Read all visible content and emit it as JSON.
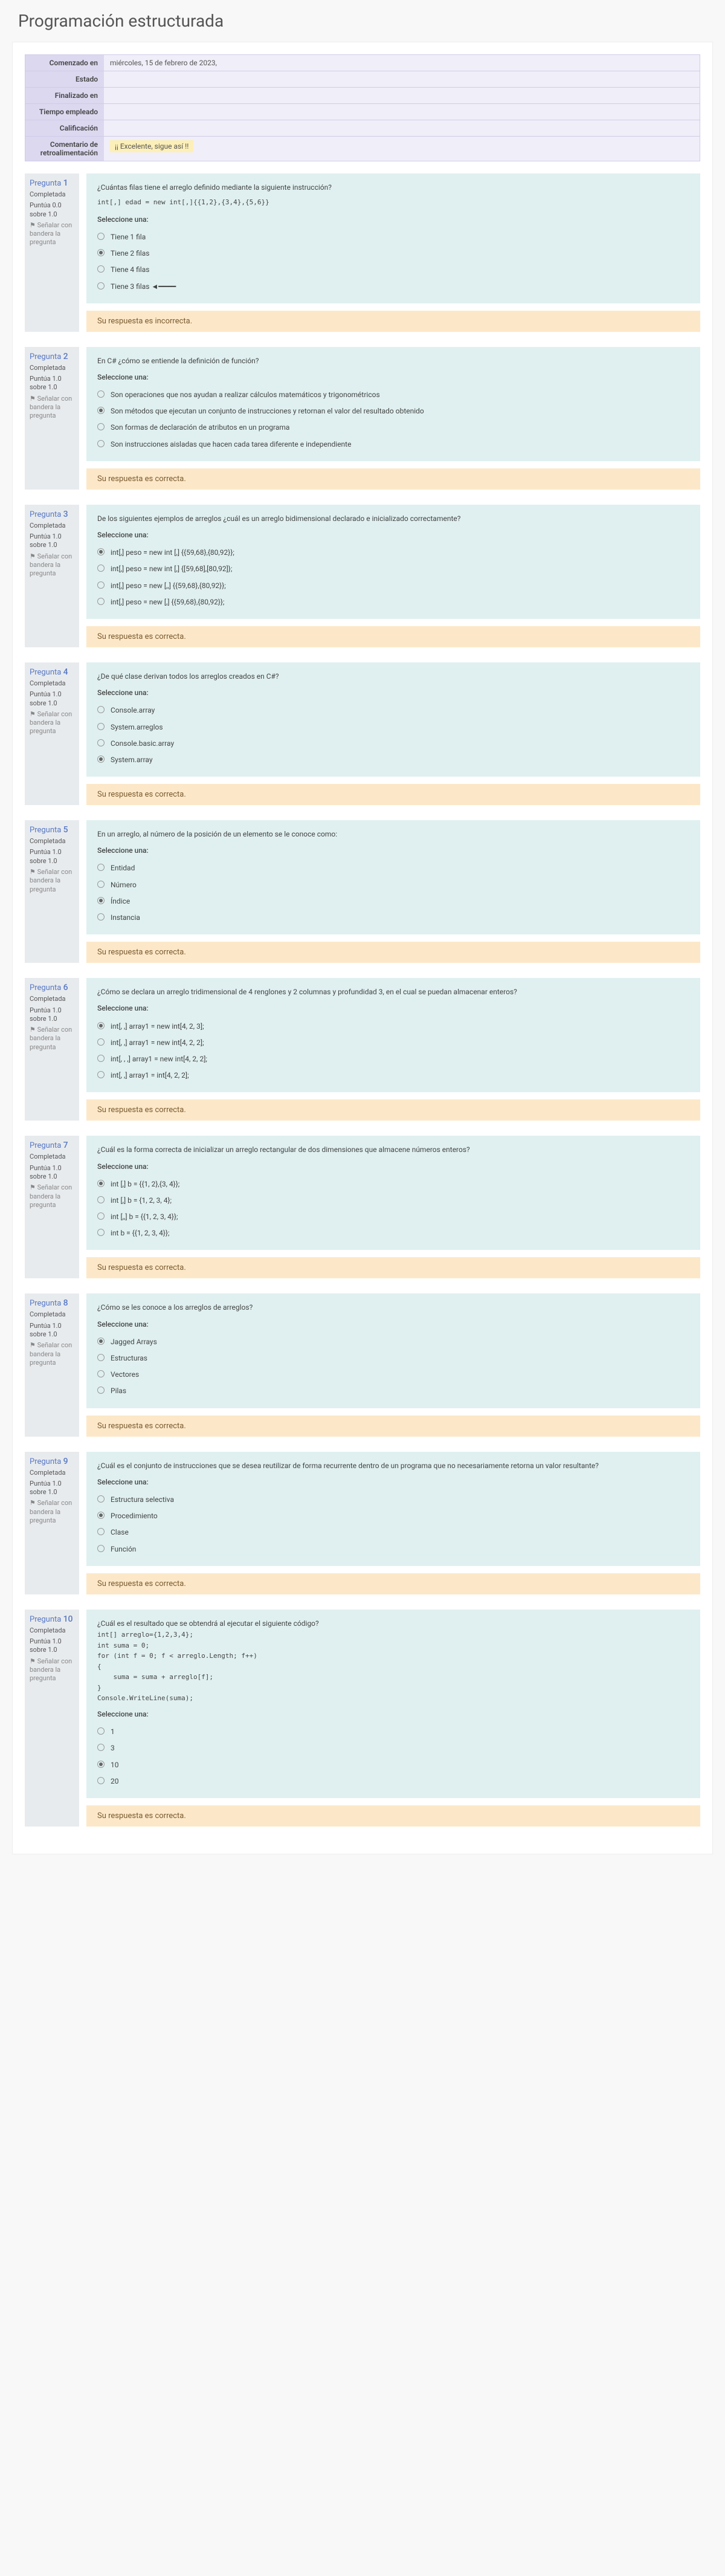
{
  "page_title": "Programación estructurada",
  "summary": {
    "started_label": "Comenzado en",
    "started_value": "miércoles, 15 de febrero de 2023,",
    "state_label": "Estado",
    "state_value": "",
    "finished_label": "Finalizado en",
    "finished_value": "",
    "time_label": "Tiempo empleado",
    "time_value": "",
    "grade_label": "Calificación",
    "grade_value": "",
    "comment_label": "Comentario de retroalimentación",
    "comment_value": "¡¡ Excelente, sigue así !!"
  },
  "common": {
    "question_prefix": "Pregunta",
    "completed": "Completada",
    "flag": "⚑ Señalar con bandera la pregunta",
    "select_one": "Seleccione una:"
  },
  "q1": {
    "num": "1",
    "score": "Puntúa 0.0 sobre 1.0",
    "text": "¿Cuántas filas tiene el arreglo definido mediante la siguiente instrucción?",
    "code": "int[,] edad = new int[,]{{1,2},{3,4},{5,6}}",
    "opts": [
      "Tiene 1 fila",
      "Tiene 2 filas",
      "Tiene 4 filas",
      "Tiene 3 filas ◄━━━━"
    ],
    "selected": 1,
    "feedback": "Su respuesta es incorrecta."
  },
  "q2": {
    "num": "2",
    "score": "Puntúa 1.0 sobre 1.0",
    "text": "En C# ¿cómo se entiende la definición de función?",
    "opts": [
      "Son operaciones que nos ayudan a realizar cálculos matemáticos y trigonométricos",
      "Son métodos que ejecutan un conjunto de instrucciones y retornan el valor del resultado obtenido",
      "Son formas de declaración de atributos en un programa",
      "Son instrucciones aisladas que hacen cada tarea diferente e independiente"
    ],
    "selected": 1,
    "feedback": "Su respuesta es correcta."
  },
  "q3": {
    "num": "3",
    "score": "Puntúa 1.0 sobre 1.0",
    "text": "De los siguientes ejemplos de arreglos ¿cuál es un arreglo bidimensional declarado e inicializado correctamente?",
    "opts": [
      "int[,] peso = new int [,] {{59,68},{80,92}};",
      "int[,] peso = new int [,] {[59,68],[80,92]};",
      "int[,] peso = new [,,] {{59,68},{80,92}};",
      "int[,] peso = new [,] {{59,68},{80,92}};"
    ],
    "selected": 0,
    "feedback": "Su respuesta es correcta."
  },
  "q4": {
    "num": "4",
    "score": "Puntúa 1.0 sobre 1.0",
    "text": "¿De qué clase derivan todos los arreglos creados en C#?",
    "opts": [
      "Console.array",
      "System.arreglos",
      "Console.basic.array",
      "System.array"
    ],
    "selected": 3,
    "feedback": "Su respuesta es correcta."
  },
  "q5": {
    "num": "5",
    "score": "Puntúa 1.0 sobre 1.0",
    "text": "En un arreglo, al número de la posición de un elemento se le conoce como:",
    "opts": [
      "Entidad",
      "Número",
      "Índice",
      "Instancia"
    ],
    "selected": 2,
    "feedback": "Su respuesta es correcta."
  },
  "q6": {
    "num": "6",
    "score": "Puntúa 1.0 sobre 1.0",
    "text": "¿Cómo se declara un arreglo tridimensional de 4 renglones y 2 columnas y profundidad 3, en el cual se puedan almacenar enteros?",
    "opts": [
      "int[, ,] array1 = new int[4, 2, 3];",
      "int[, ,] array1 = new int[4, 2, 2];",
      "int[, , ,] array1 = new int[4, 2, 2];",
      "int[, ,] array1 =  int[4, 2, 2];"
    ],
    "selected": 0,
    "feedback": "Su respuesta es correcta."
  },
  "q7": {
    "num": "7",
    "score": "Puntúa 1.0 sobre 1.0",
    "text": "¿Cuál es la forma correcta de inicializar un arreglo rectangular de dos dimensiones que almacene números enteros?",
    "opts": [
      "int [,] b = {{1, 2},{3, 4}};",
      "int [,] b = {1, 2, 3, 4};",
      "int [,,] b = {{1, 2, 3, 4}};",
      "int b = {{1, 2, 3, 4}};"
    ],
    "selected": 0,
    "feedback": "Su respuesta es correcta."
  },
  "q8": {
    "num": "8",
    "score": "Puntúa 1.0 sobre 1.0",
    "text": "¿Cómo se les conoce a los arreglos de arreglos?",
    "opts": [
      "Jagged Arrays",
      "Estructuras",
      "Vectores",
      "Pilas"
    ],
    "selected": 0,
    "feedback": "Su respuesta es correcta."
  },
  "q9": {
    "num": "9",
    "score": "Puntúa 1.0 sobre 1.0",
    "text": "¿Cuál es el conjunto de instrucciones que se desea reutilizar de forma recurrente dentro de un programa que no necesariamente retorna un valor resultante?",
    "opts": [
      "Estructura selectiva",
      "Procedimiento",
      "Clase",
      "Función"
    ],
    "selected": 1,
    "feedback": "Su respuesta es correcta."
  },
  "q10": {
    "num": "10",
    "score": "Puntúa 1.0 sobre 1.0",
    "text": "¿Cuál es el resultado que se obtendrá al ejecutar el siguiente código?",
    "code": "int[] arreglo={1,2,3,4};\nint suma = 0;\nfor (int f = 0; f < arreglo.Length; f++)\n{\n    suma = suma + arreglo[f];\n}\nConsole.WriteLine(suma);",
    "opts": [
      "1",
      "3",
      "10",
      "20"
    ],
    "selected": 2,
    "feedback": "Su respuesta es correcta."
  }
}
